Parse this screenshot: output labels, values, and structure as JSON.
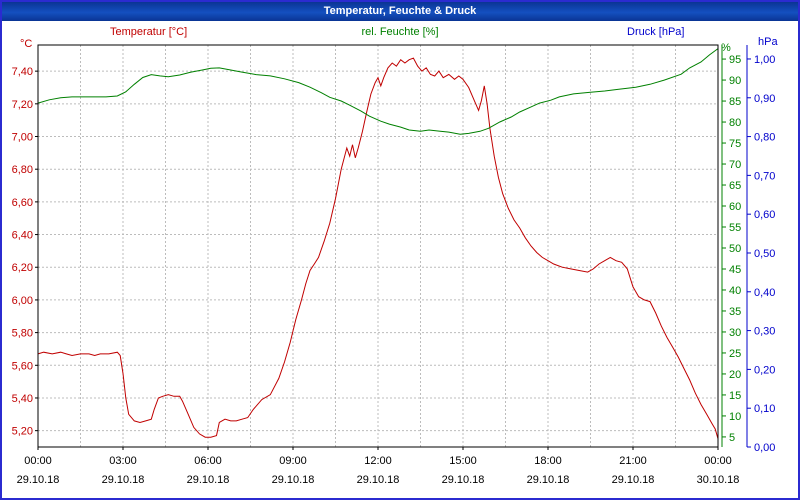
{
  "window": {
    "title": "Temperatur, Feuchte & Druck"
  },
  "legend": {
    "temperature": {
      "label": "Temperatur [°C]",
      "unit": "°C",
      "color": "#c00000"
    },
    "humidity": {
      "label": "rel. Feuchte [%]",
      "unit": "%",
      "color": "#008000"
    },
    "pressure": {
      "label": "Druck [hPa]",
      "unit": "hPa",
      "color": "#0000cc"
    }
  },
  "chart_data": {
    "type": "line",
    "title": "Temperatur, Feuchte & Druck",
    "grid": {
      "color": "#bcbcbc",
      "dash": "2,2"
    },
    "x_axis": {
      "span_hours": 24,
      "minor_grid_step_hours": 1.5,
      "tick_hours": [
        0,
        3,
        6,
        9,
        12,
        15,
        18,
        21,
        24
      ],
      "tick_times": [
        "00:00",
        "03:00",
        "06:00",
        "09:00",
        "12:00",
        "15:00",
        "18:00",
        "21:00",
        "00:00"
      ],
      "tick_dates": [
        "29.10.18",
        "29.10.18",
        "29.10.18",
        "29.10.18",
        "29.10.18",
        "29.10.18",
        "29.10.18",
        "29.10.18",
        "30.10.18"
      ]
    },
    "y_axes": [
      {
        "id": "temperature",
        "side": "left",
        "unit": "°C",
        "color": "#c00000",
        "min": 5.1,
        "max": 7.56,
        "tick_values": [
          5.2,
          5.4,
          5.6,
          5.8,
          6.0,
          6.2,
          6.4,
          6.6,
          6.8,
          7.0,
          7.2,
          7.4
        ],
        "tick_labels": [
          "5,20",
          "5,40",
          "5,60",
          "5,80",
          "6,00",
          "6,20",
          "6,40",
          "6,60",
          "6,80",
          "7,00",
          "7,20",
          "7,40"
        ]
      },
      {
        "id": "humidity",
        "side": "right-inner",
        "unit": "%",
        "color": "#008000",
        "min": 2.6,
        "max": 98.35,
        "tick_values": [
          5,
          10,
          15,
          20,
          25,
          30,
          35,
          40,
          45,
          50,
          55,
          60,
          65,
          70,
          75,
          80,
          85,
          90,
          95
        ],
        "tick_labels": [
          "5",
          "10",
          "15",
          "20",
          "25",
          "30",
          "35",
          "40",
          "45",
          "50",
          "55",
          "60",
          "65",
          "70",
          "75",
          "80",
          "85",
          "90",
          "95"
        ]
      },
      {
        "id": "pressure",
        "side": "right-outer",
        "unit": "hPa",
        "color": "#0000cc",
        "min": 0.0,
        "max": 1.036,
        "tick_values": [
          0.0,
          0.1,
          0.2,
          0.3,
          0.4,
          0.5,
          0.6,
          0.7,
          0.8,
          0.9,
          1.0
        ],
        "tick_labels": [
          "0,00",
          "0,10",
          "0,20",
          "0,30",
          "0,40",
          "0,50",
          "0,60",
          "0,70",
          "0,80",
          "0,90",
          "1,00"
        ]
      }
    ],
    "series": [
      {
        "name": "Temperatur [°C]",
        "axis": "temperature",
        "color": "#c00000",
        "points": [
          [
            0,
            5.67
          ],
          [
            0.2,
            5.68
          ],
          [
            0.5,
            5.67
          ],
          [
            0.8,
            5.68
          ],
          [
            1.0,
            5.67
          ],
          [
            1.2,
            5.66
          ],
          [
            1.5,
            5.67
          ],
          [
            1.8,
            5.67
          ],
          [
            2.0,
            5.66
          ],
          [
            2.2,
            5.67
          ],
          [
            2.5,
            5.67
          ],
          [
            2.8,
            5.68
          ],
          [
            2.9,
            5.66
          ],
          [
            3.0,
            5.55
          ],
          [
            3.1,
            5.4
          ],
          [
            3.2,
            5.3
          ],
          [
            3.4,
            5.26
          ],
          [
            3.6,
            5.25
          ],
          [
            3.8,
            5.26
          ],
          [
            4.0,
            5.27
          ],
          [
            4.1,
            5.33
          ],
          [
            4.25,
            5.4
          ],
          [
            4.4,
            5.41
          ],
          [
            4.6,
            5.42
          ],
          [
            4.8,
            5.41
          ],
          [
            5.0,
            5.41
          ],
          [
            5.1,
            5.38
          ],
          [
            5.3,
            5.3
          ],
          [
            5.5,
            5.22
          ],
          [
            5.7,
            5.18
          ],
          [
            5.9,
            5.16
          ],
          [
            6.1,
            5.16
          ],
          [
            6.3,
            5.17
          ],
          [
            6.4,
            5.25
          ],
          [
            6.6,
            5.27
          ],
          [
            6.8,
            5.26
          ],
          [
            7.0,
            5.26
          ],
          [
            7.2,
            5.27
          ],
          [
            7.4,
            5.28
          ],
          [
            7.6,
            5.33
          ],
          [
            7.9,
            5.39
          ],
          [
            8.2,
            5.42
          ],
          [
            8.5,
            5.52
          ],
          [
            8.7,
            5.62
          ],
          [
            8.9,
            5.74
          ],
          [
            9.1,
            5.88
          ],
          [
            9.3,
            6.0
          ],
          [
            9.45,
            6.1
          ],
          [
            9.6,
            6.18
          ],
          [
            9.75,
            6.22
          ],
          [
            9.9,
            6.26
          ],
          [
            10.1,
            6.36
          ],
          [
            10.3,
            6.47
          ],
          [
            10.5,
            6.62
          ],
          [
            10.7,
            6.8
          ],
          [
            10.9,
            6.93
          ],
          [
            11.0,
            6.88
          ],
          [
            11.1,
            6.95
          ],
          [
            11.2,
            6.87
          ],
          [
            11.3,
            6.93
          ],
          [
            11.45,
            7.03
          ],
          [
            11.6,
            7.15
          ],
          [
            11.75,
            7.26
          ],
          [
            11.9,
            7.33
          ],
          [
            12.0,
            7.36
          ],
          [
            12.1,
            7.31
          ],
          [
            12.2,
            7.36
          ],
          [
            12.35,
            7.42
          ],
          [
            12.5,
            7.45
          ],
          [
            12.65,
            7.43
          ],
          [
            12.8,
            7.47
          ],
          [
            12.95,
            7.45
          ],
          [
            13.1,
            7.47
          ],
          [
            13.25,
            7.48
          ],
          [
            13.4,
            7.43
          ],
          [
            13.55,
            7.4
          ],
          [
            13.7,
            7.42
          ],
          [
            13.85,
            7.38
          ],
          [
            14.0,
            7.37
          ],
          [
            14.15,
            7.4
          ],
          [
            14.3,
            7.36
          ],
          [
            14.5,
            7.38
          ],
          [
            14.7,
            7.35
          ],
          [
            14.85,
            7.37
          ],
          [
            15.0,
            7.35
          ],
          [
            15.2,
            7.3
          ],
          [
            15.4,
            7.22
          ],
          [
            15.55,
            7.16
          ],
          [
            15.65,
            7.22
          ],
          [
            15.75,
            7.31
          ],
          [
            15.85,
            7.2
          ],
          [
            15.95,
            7.05
          ],
          [
            16.1,
            6.88
          ],
          [
            16.25,
            6.75
          ],
          [
            16.4,
            6.65
          ],
          [
            16.6,
            6.56
          ],
          [
            16.8,
            6.49
          ],
          [
            17.0,
            6.44
          ],
          [
            17.2,
            6.38
          ],
          [
            17.4,
            6.33
          ],
          [
            17.6,
            6.29
          ],
          [
            17.8,
            6.26
          ],
          [
            18.0,
            6.24
          ],
          [
            18.2,
            6.22
          ],
          [
            18.5,
            6.2
          ],
          [
            18.8,
            6.19
          ],
          [
            19.1,
            6.18
          ],
          [
            19.4,
            6.17
          ],
          [
            19.6,
            6.19
          ],
          [
            19.8,
            6.22
          ],
          [
            20.0,
            6.24
          ],
          [
            20.2,
            6.26
          ],
          [
            20.4,
            6.24
          ],
          [
            20.6,
            6.23
          ],
          [
            20.8,
            6.19
          ],
          [
            21.0,
            6.08
          ],
          [
            21.2,
            6.02
          ],
          [
            21.4,
            6.0
          ],
          [
            21.6,
            5.99
          ],
          [
            21.8,
            5.92
          ],
          [
            22.0,
            5.84
          ],
          [
            22.2,
            5.77
          ],
          [
            22.4,
            5.71
          ],
          [
            22.6,
            5.65
          ],
          [
            22.8,
            5.58
          ],
          [
            23.0,
            5.51
          ],
          [
            23.2,
            5.43
          ],
          [
            23.4,
            5.36
          ],
          [
            23.6,
            5.3
          ],
          [
            23.8,
            5.24
          ],
          [
            23.9,
            5.21
          ],
          [
            24.0,
            5.15
          ]
        ]
      },
      {
        "name": "rel. Feuchte [%]",
        "axis": "humidity",
        "color": "#008000",
        "points": [
          [
            0,
            84.5
          ],
          [
            0.4,
            85.3
          ],
          [
            0.8,
            85.8
          ],
          [
            1.2,
            86.0
          ],
          [
            1.6,
            86.0
          ],
          [
            2.0,
            86.0
          ],
          [
            2.4,
            86.0
          ],
          [
            2.8,
            86.2
          ],
          [
            3.1,
            87.2
          ],
          [
            3.4,
            89.0
          ],
          [
            3.7,
            90.6
          ],
          [
            4.0,
            91.3
          ],
          [
            4.3,
            91.0
          ],
          [
            4.6,
            90.8
          ],
          [
            5.0,
            91.2
          ],
          [
            5.4,
            91.9
          ],
          [
            5.8,
            92.4
          ],
          [
            6.1,
            92.8
          ],
          [
            6.4,
            92.9
          ],
          [
            6.8,
            92.4
          ],
          [
            7.2,
            91.9
          ],
          [
            7.7,
            91.3
          ],
          [
            8.2,
            91.0
          ],
          [
            8.7,
            90.3
          ],
          [
            9.2,
            89.4
          ],
          [
            9.6,
            88.3
          ],
          [
            10.0,
            87.0
          ],
          [
            10.3,
            85.9
          ],
          [
            10.7,
            85.0
          ],
          [
            11.0,
            84.0
          ],
          [
            11.4,
            82.6
          ],
          [
            11.7,
            81.4
          ],
          [
            12.1,
            80.2
          ],
          [
            12.4,
            79.5
          ],
          [
            12.8,
            78.8
          ],
          [
            13.1,
            78.1
          ],
          [
            13.5,
            77.8
          ],
          [
            13.8,
            78.1
          ],
          [
            14.2,
            77.8
          ],
          [
            14.5,
            77.6
          ],
          [
            14.9,
            77.1
          ],
          [
            15.2,
            77.3
          ],
          [
            15.6,
            77.8
          ],
          [
            15.9,
            78.5
          ],
          [
            16.3,
            80.0
          ],
          [
            16.7,
            81.2
          ],
          [
            17.0,
            82.4
          ],
          [
            17.4,
            83.6
          ],
          [
            17.7,
            84.5
          ],
          [
            18.1,
            85.2
          ],
          [
            18.4,
            86.0
          ],
          [
            18.9,
            86.7
          ],
          [
            19.5,
            87.1
          ],
          [
            20.0,
            87.4
          ],
          [
            20.5,
            87.8
          ],
          [
            21.1,
            88.3
          ],
          [
            21.6,
            89.0
          ],
          [
            22.1,
            90.0
          ],
          [
            22.7,
            91.4
          ],
          [
            23.0,
            92.9
          ],
          [
            23.4,
            94.3
          ],
          [
            23.7,
            96.0
          ],
          [
            24.0,
            97.5
          ]
        ]
      },
      {
        "name": "Druck [hPa]",
        "axis": "pressure",
        "color": "#0000cc",
        "points": [
          [
            0,
            0.0
          ],
          [
            24,
            0.0
          ]
        ]
      }
    ]
  }
}
